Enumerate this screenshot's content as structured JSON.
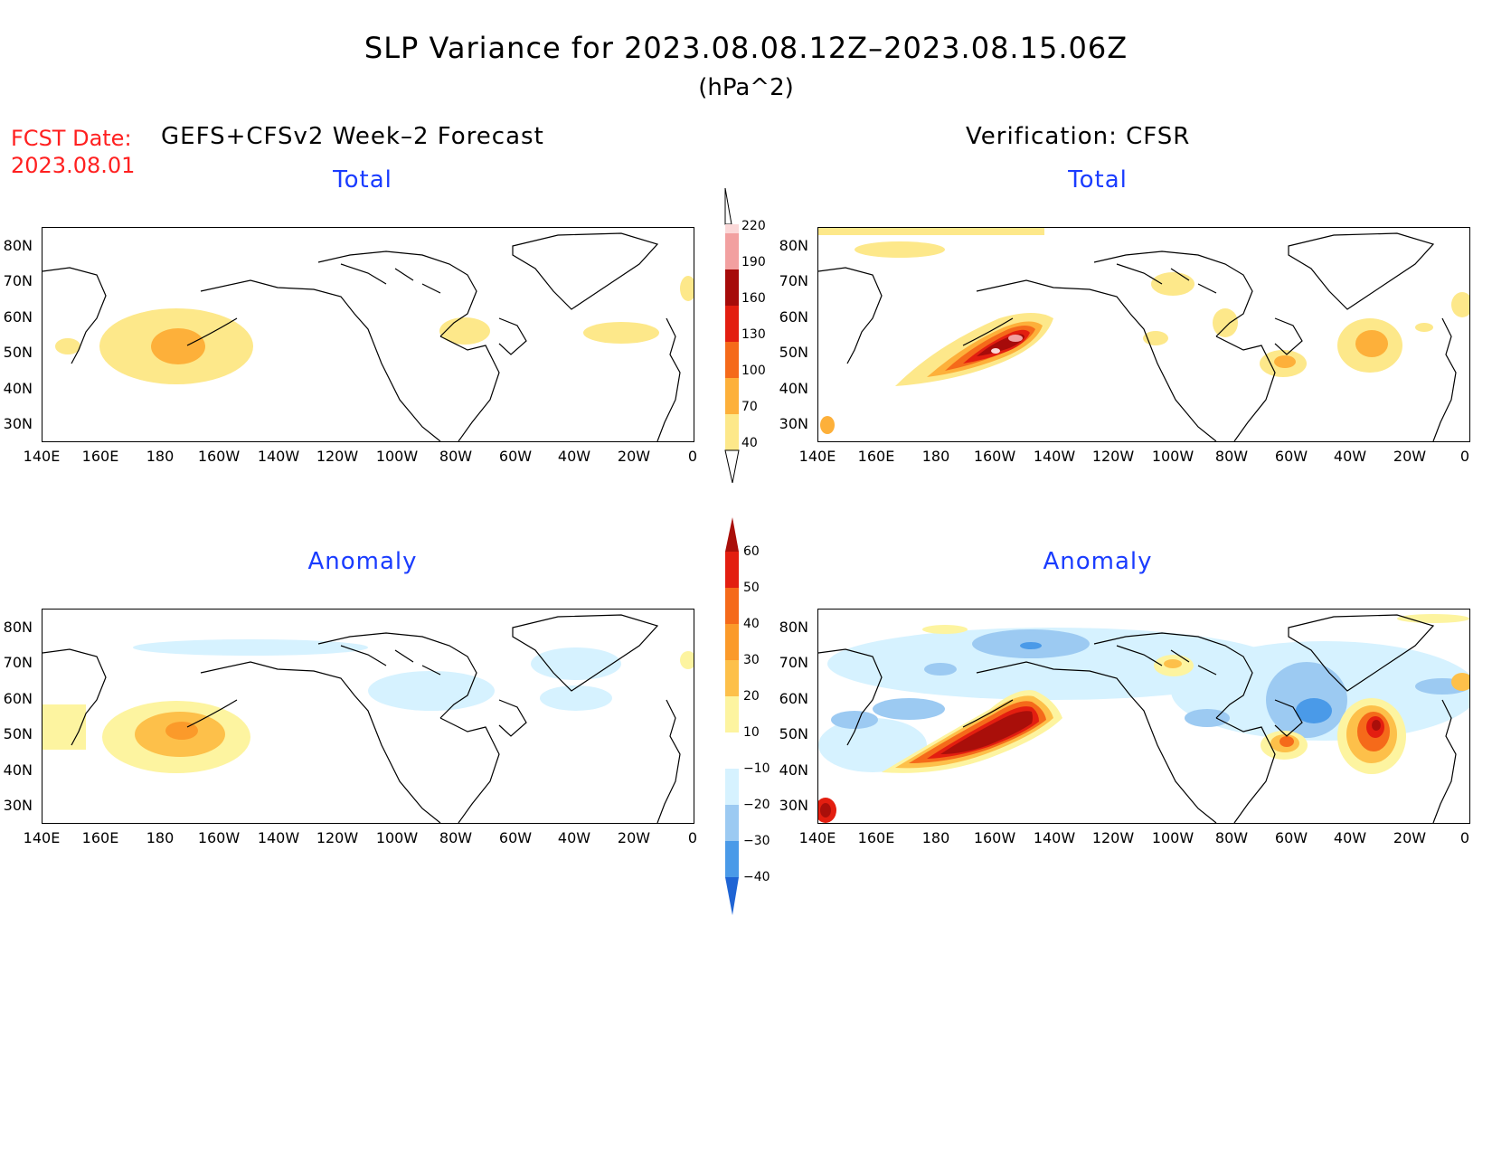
{
  "title": "SLP Variance for 2023.08.08.12Z–2023.08.15.06Z",
  "units": "(hPa^2)",
  "forecast_date_label": "FCST Date:",
  "forecast_date": "2023.08.01",
  "left_header": "GEFS+CFSv2 Week–2 Forecast",
  "right_header": "Verification: CFSR",
  "panels": [
    {
      "id": "fcst-total",
      "subtitle": "Total"
    },
    {
      "id": "verif-total",
      "subtitle": "Total"
    },
    {
      "id": "fcst-anomaly",
      "subtitle": "Anomaly"
    },
    {
      "id": "verif-anomaly",
      "subtitle": "Anomaly"
    }
  ],
  "lat_labels": [
    "80N",
    "70N",
    "60N",
    "50N",
    "40N",
    "30N"
  ],
  "lon_labels": [
    "140E",
    "160E",
    "180",
    "160W",
    "140W",
    "120W",
    "100W",
    "80W",
    "60W",
    "40W",
    "20W",
    "0"
  ],
  "colorbar_total": {
    "levels": [
      "40",
      "70",
      "100",
      "130",
      "160",
      "190",
      "220"
    ],
    "colors": [
      "#fde88a",
      "#fdb03a",
      "#f56a1a",
      "#e31e10",
      "#a60b0a",
      "#f2a0a0",
      "#fbd8d8"
    ]
  },
  "colorbar_anomaly": {
    "levels": [
      "60",
      "50",
      "40",
      "30",
      "20",
      "10",
      "−10",
      "−20",
      "−30",
      "−40"
    ],
    "colors": [
      "#a90f0a",
      "#e31e10",
      "#f56a1a",
      "#fb9a2a",
      "#fdc04a",
      "#fdf4a0",
      "#ffffff",
      "#d6f2ff",
      "#9ccaf2",
      "#4a9ae8",
      "#1f64d4"
    ]
  }
}
